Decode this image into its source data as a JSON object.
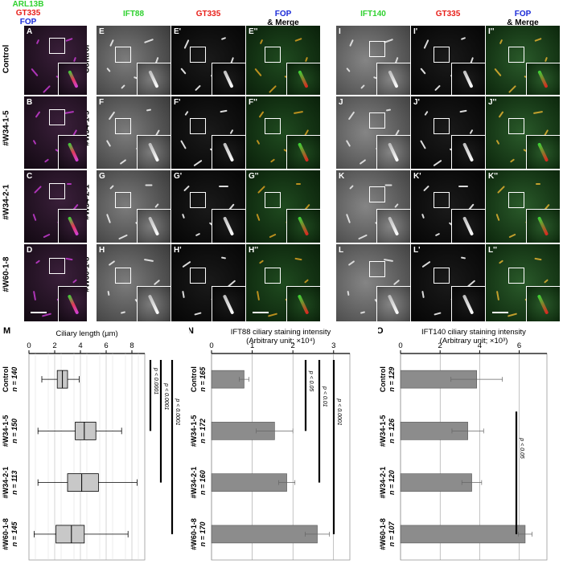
{
  "micrograph": {
    "header_a": {
      "l1": "ARL13B",
      "l2": "GT335",
      "l3": "FOP"
    },
    "header_e": "IFT88",
    "header_e2": "GT335",
    "header_e3_l1": "FOP",
    "header_e3_l2": "& Merge",
    "header_i": "IFT140",
    "header_i2": "GT335",
    "header_i3_l1": "FOP",
    "header_i3_l2": "& Merge",
    "rows": [
      "Control",
      "#W34-1-5",
      "#W34-2-1",
      "#W60-1-8"
    ],
    "panel_labels": [
      [
        "A",
        "E",
        "E'",
        "E''",
        "I",
        "I'",
        "I''"
      ],
      [
        "B",
        "F",
        "F'",
        "F''",
        "J",
        "J'",
        "J''"
      ],
      [
        "C",
        "G",
        "G'",
        "G''",
        "K",
        "K'",
        "K''"
      ],
      [
        "D",
        "H",
        "H'",
        "H''",
        "L",
        "L'",
        "L''"
      ]
    ]
  },
  "chart_data": [
    {
      "panel": "M",
      "type": "box",
      "title": "Ciliary length (µm)",
      "axis_ticks": [
        "0",
        "2",
        "4",
        "6",
        "8"
      ],
      "xlim": [
        0,
        9
      ],
      "groups": [
        {
          "name": "Control",
          "n": "n = 140",
          "min": 1.0,
          "q1": 2.2,
          "median": 2.6,
          "q3": 3.0,
          "max": 3.9
        },
        {
          "name": "#W34-1-5",
          "n": "n = 150",
          "min": 0.7,
          "q1": 3.6,
          "median": 4.3,
          "q3": 5.2,
          "max": 7.2
        },
        {
          "name": "#W34-2-1",
          "n": "n = 113",
          "min": 0.7,
          "q1": 3.0,
          "median": 4.1,
          "q3": 5.4,
          "max": 8.4
        },
        {
          "name": "#W60-1-8",
          "n": "n = 145",
          "min": 0.4,
          "q1": 2.1,
          "median": 3.3,
          "q3": 4.3,
          "max": 7.7
        }
      ],
      "significance": [
        "p < 0.0001",
        "p < 0.0001",
        "p < 0.0001"
      ]
    },
    {
      "panel": "N",
      "type": "bar",
      "title_l1": "IFT88 ciliary staining intensity",
      "title_l2": "(Arbitrary unit; ×10⁴)",
      "axis_ticks": [
        "0",
        "1",
        "2",
        "3"
      ],
      "xlim": [
        0,
        3.4
      ],
      "groups": [
        {
          "name": "Control",
          "n": "n = 165",
          "value": 0.8,
          "err": 0.12
        },
        {
          "name": "#W34-1-5",
          "n": "n = 172",
          "value": 1.55,
          "err": 0.45
        },
        {
          "name": "#W34-2-1",
          "n": "n = 160",
          "value": 1.85,
          "err": 0.2
        },
        {
          "name": "#W60-1-8",
          "n": "n = 170",
          "value": 2.6,
          "err": 0.3
        }
      ],
      "significance": [
        "p < 0.05",
        "p < 0.01",
        "p < 0.0001"
      ]
    },
    {
      "panel": "O",
      "type": "bar",
      "title_l1": "IFT140 ciliary staining intensity",
      "title_l2": "(Arbitrary unit; ×10³)",
      "axis_ticks": [
        "0",
        "2",
        "4",
        "6"
      ],
      "xlim": [
        0,
        7.4
      ],
      "groups": [
        {
          "name": "Control",
          "n": "n = 129",
          "value": 3.85,
          "err": 1.3
        },
        {
          "name": "#W34-1-5",
          "n": "n = 126",
          "value": 3.4,
          "err": 0.8
        },
        {
          "name": "#W34-2-1",
          "n": "n = 120",
          "value": 3.6,
          "err": 0.5
        },
        {
          "name": "#W60-1-8",
          "n": "n = 107",
          "value": 6.3,
          "err": 0.35
        }
      ],
      "significance": [
        "p < 0.05"
      ]
    }
  ]
}
